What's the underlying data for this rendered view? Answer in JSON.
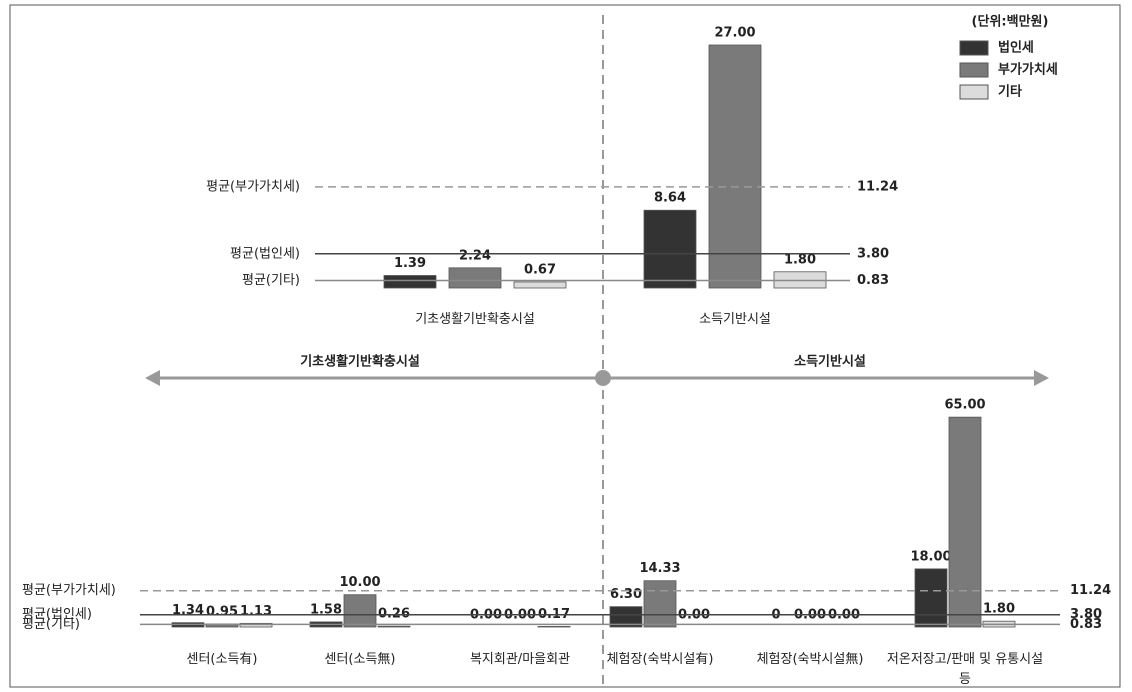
{
  "unit": "(단위:백만원)",
  "sections": [
    "기초생활기반확충시설",
    "소득기반시설"
  ],
  "chart_data": [
    {
      "type": "bar",
      "categories": [
        "기초생활기반확충시설",
        "소득기반시설"
      ],
      "ylim": [
        0,
        30
      ],
      "series": [
        {
          "name": "법인세",
          "color": "#333333",
          "values": [
            1.39,
            8.64
          ],
          "value_labels": [
            "1.39",
            "8.64"
          ]
        },
        {
          "name": "부가가치세",
          "color": "#7a7a7a",
          "values": [
            2.24,
            27.0
          ],
          "value_labels": [
            "2.24",
            "27.00"
          ]
        },
        {
          "name": "기타",
          "color": "#dcdcdc",
          "values": [
            0.67,
            1.8
          ],
          "value_labels": [
            "0.67",
            "1.80"
          ]
        }
      ],
      "averages": [
        {
          "name": "평균(부가가치세)",
          "value": 11.24,
          "value_label": "11.24"
        },
        {
          "name": "평균(법인세)",
          "value": 3.8,
          "value_label": "3.80"
        },
        {
          "name": "평균(기타)",
          "value": 0.83,
          "value_label": "0.83"
        }
      ]
    },
    {
      "type": "bar",
      "categories": [
        "센터(소득有)",
        "센터(소득無)",
        "복지회관/마을회관",
        "체험장(숙박시설有)",
        "체험장(숙박시설無)",
        "저온저장고/판매 및 유통시설 등"
      ],
      "ylim": [
        0,
        70
      ],
      "series": [
        {
          "name": "법인세",
          "color": "#333333",
          "values": [
            1.34,
            1.58,
            0,
            6.3,
            0,
            18.0
          ],
          "value_labels": [
            "1.34",
            "1.58",
            "0.00",
            "6.30",
            "0",
            "18.00"
          ]
        },
        {
          "name": "부가가치세",
          "color": "#7a7a7a",
          "values": [
            0.95,
            10.0,
            0,
            14.33,
            0,
            65.0
          ],
          "value_labels": [
            "0.95",
            "10.00",
            "0.00",
            "14.33",
            "0.00",
            "65.00"
          ]
        },
        {
          "name": "기타",
          "color": "#dcdcdc",
          "values": [
            1.13,
            0.26,
            0.17,
            0,
            0,
            1.8
          ],
          "value_labels": [
            "1.13",
            "0.26",
            "0.17",
            "0.00",
            "0.00",
            "1.80"
          ]
        }
      ],
      "averages": [
        {
          "name": "평균(부가가치세)",
          "value": 11.24,
          "value_label": "11.24"
        },
        {
          "name": "평균(법인세)",
          "value": 3.8,
          "value_label": "3.80"
        },
        {
          "name": "평균(기타)",
          "value": 0.83,
          "value_label": "0.83"
        }
      ]
    }
  ]
}
